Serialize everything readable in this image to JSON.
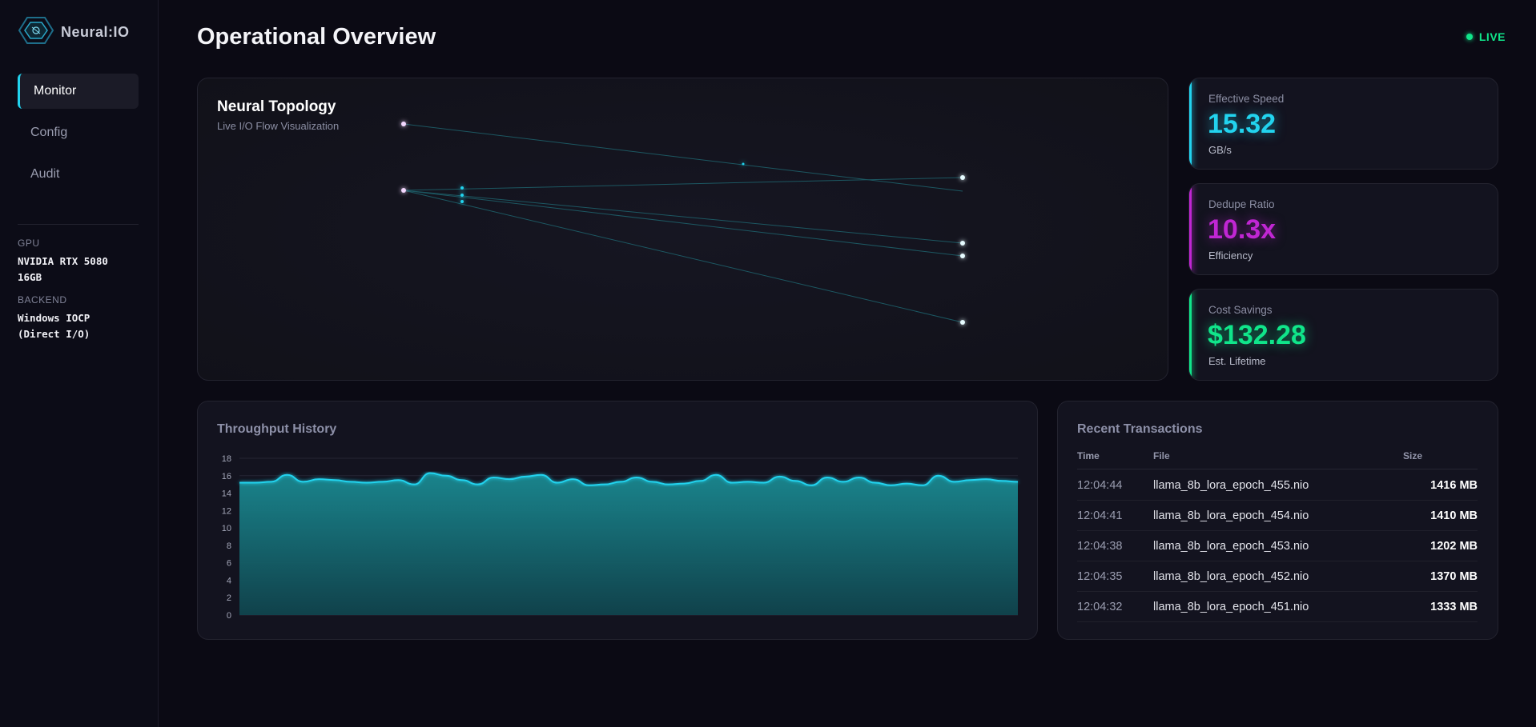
{
  "brand": {
    "name": "Neural:IO",
    "logo_icon": "hexagon-brain-icon"
  },
  "nav": [
    {
      "label": "Monitor",
      "active": true
    },
    {
      "label": "Config",
      "active": false
    },
    {
      "label": "Audit",
      "active": false
    }
  ],
  "system": {
    "gpu_label": "GPU",
    "gpu_value_line1": "NVIDIA RTX 5080",
    "gpu_value_line2": "16GB",
    "backend_label": "BACKEND",
    "backend_value_line1": "Windows IOCP",
    "backend_value_line2": "(Direct I/O)"
  },
  "header": {
    "title": "Operational Overview",
    "status": "LIVE",
    "status_color": "#10e58a"
  },
  "topology": {
    "title": "Neural Topology",
    "subtitle": "Live I/O Flow Visualization"
  },
  "stats": [
    {
      "label": "Effective Speed",
      "value": "15.32",
      "unit": "GB/s",
      "color": "#22d3ee"
    },
    {
      "label": "Dedupe Ratio",
      "value": "10.3x",
      "unit": "Efficiency",
      "color": "#c026d3"
    },
    {
      "label": "Cost Savings",
      "value": "$132.28",
      "unit": "Est. Lifetime",
      "color": "#10e58a"
    }
  ],
  "throughput": {
    "title": "Throughput History",
    "chart_data": {
      "type": "area",
      "title": "Throughput History",
      "ylim": [
        0,
        18
      ],
      "yticks": [
        0,
        2,
        4,
        6,
        8,
        10,
        12,
        14,
        16,
        18
      ],
      "grid": true,
      "color": "#22d3ee",
      "values": [
        15.2,
        15.2,
        15.3,
        16.1,
        15.3,
        15.6,
        15.5,
        15.3,
        15.2,
        15.3,
        15.5,
        15.0,
        16.3,
        16.0,
        15.5,
        15.0,
        15.8,
        15.6,
        15.9,
        16.1,
        15.2,
        15.6,
        14.9,
        15.0,
        15.3,
        15.8,
        15.3,
        15.0,
        15.1,
        15.4,
        16.1,
        15.2,
        15.3,
        15.2,
        15.9,
        15.4,
        14.9,
        15.8,
        15.3,
        15.8,
        15.2,
        14.9,
        15.1,
        14.9,
        16.0,
        15.3,
        15.5,
        15.6,
        15.4,
        15.3
      ]
    }
  },
  "transactions": {
    "title": "Recent Transactions",
    "columns": {
      "time": "Time",
      "file": "File",
      "size": "Size"
    },
    "rows": [
      {
        "time": "12:04:44",
        "file": "llama_8b_lora_epoch_455.nio",
        "size": "1416 MB"
      },
      {
        "time": "12:04:41",
        "file": "llama_8b_lora_epoch_454.nio",
        "size": "1410 MB"
      },
      {
        "time": "12:04:38",
        "file": "llama_8b_lora_epoch_453.nio",
        "size": "1202 MB"
      },
      {
        "time": "12:04:35",
        "file": "llama_8b_lora_epoch_452.nio",
        "size": "1370 MB"
      },
      {
        "time": "12:04:32",
        "file": "llama_8b_lora_epoch_451.nio",
        "size": "1333 MB"
      }
    ]
  }
}
